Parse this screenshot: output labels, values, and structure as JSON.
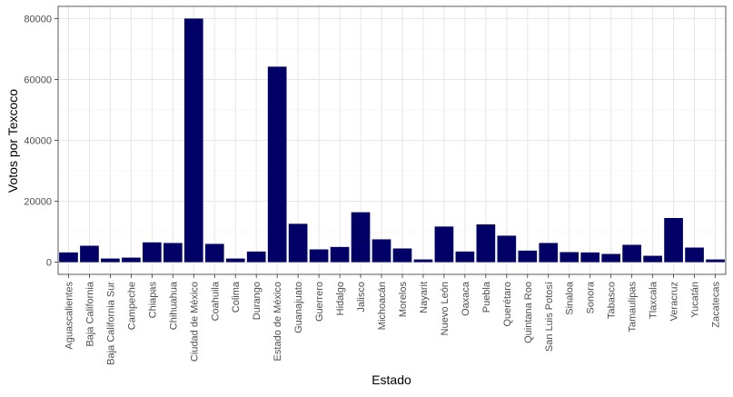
{
  "chart_data": {
    "type": "bar",
    "xlabel": "Estado",
    "ylabel": "Votos por Texcoco",
    "ylim": [
      -4000,
      84000
    ],
    "yticks": [
      0,
      20000,
      40000,
      60000,
      80000
    ],
    "ytick_labels": [
      "0",
      "20000",
      "40000",
      "60000",
      "80000"
    ],
    "grid": true,
    "bar_color": "#000066",
    "categories": [
      "Aguascalientes",
      "Baja California",
      "Baja California Sur",
      "Campeche",
      "Chiapas",
      "Chihuahua",
      "Ciudad de México",
      "Coahuila",
      "Colima",
      "Durango",
      "Estado de México",
      "Guanajuato",
      "Guerrero",
      "Hidalgo",
      "Jalisco",
      "Michoacán",
      "Morelos",
      "Nayarit",
      "Nuevo León",
      "Oaxaca",
      "Puebla",
      "Querétaro",
      "Quintana Roo",
      "San Luis Potosí",
      "Sinaloa",
      "Sonora",
      "Tabasco",
      "Tamaulipas",
      "Tlaxcala",
      "Veracruz",
      "Yucatán",
      "Zacatecas"
    ],
    "values": [
      3200,
      5400,
      1200,
      1500,
      6500,
      6300,
      80000,
      6000,
      1200,
      3500,
      64200,
      12600,
      4200,
      5000,
      16400,
      7500,
      4500,
      900,
      11700,
      3500,
      12400,
      8700,
      3800,
      6300,
      3300,
      3200,
      2700,
      5700,
      2100,
      14500,
      4800,
      900
    ]
  }
}
